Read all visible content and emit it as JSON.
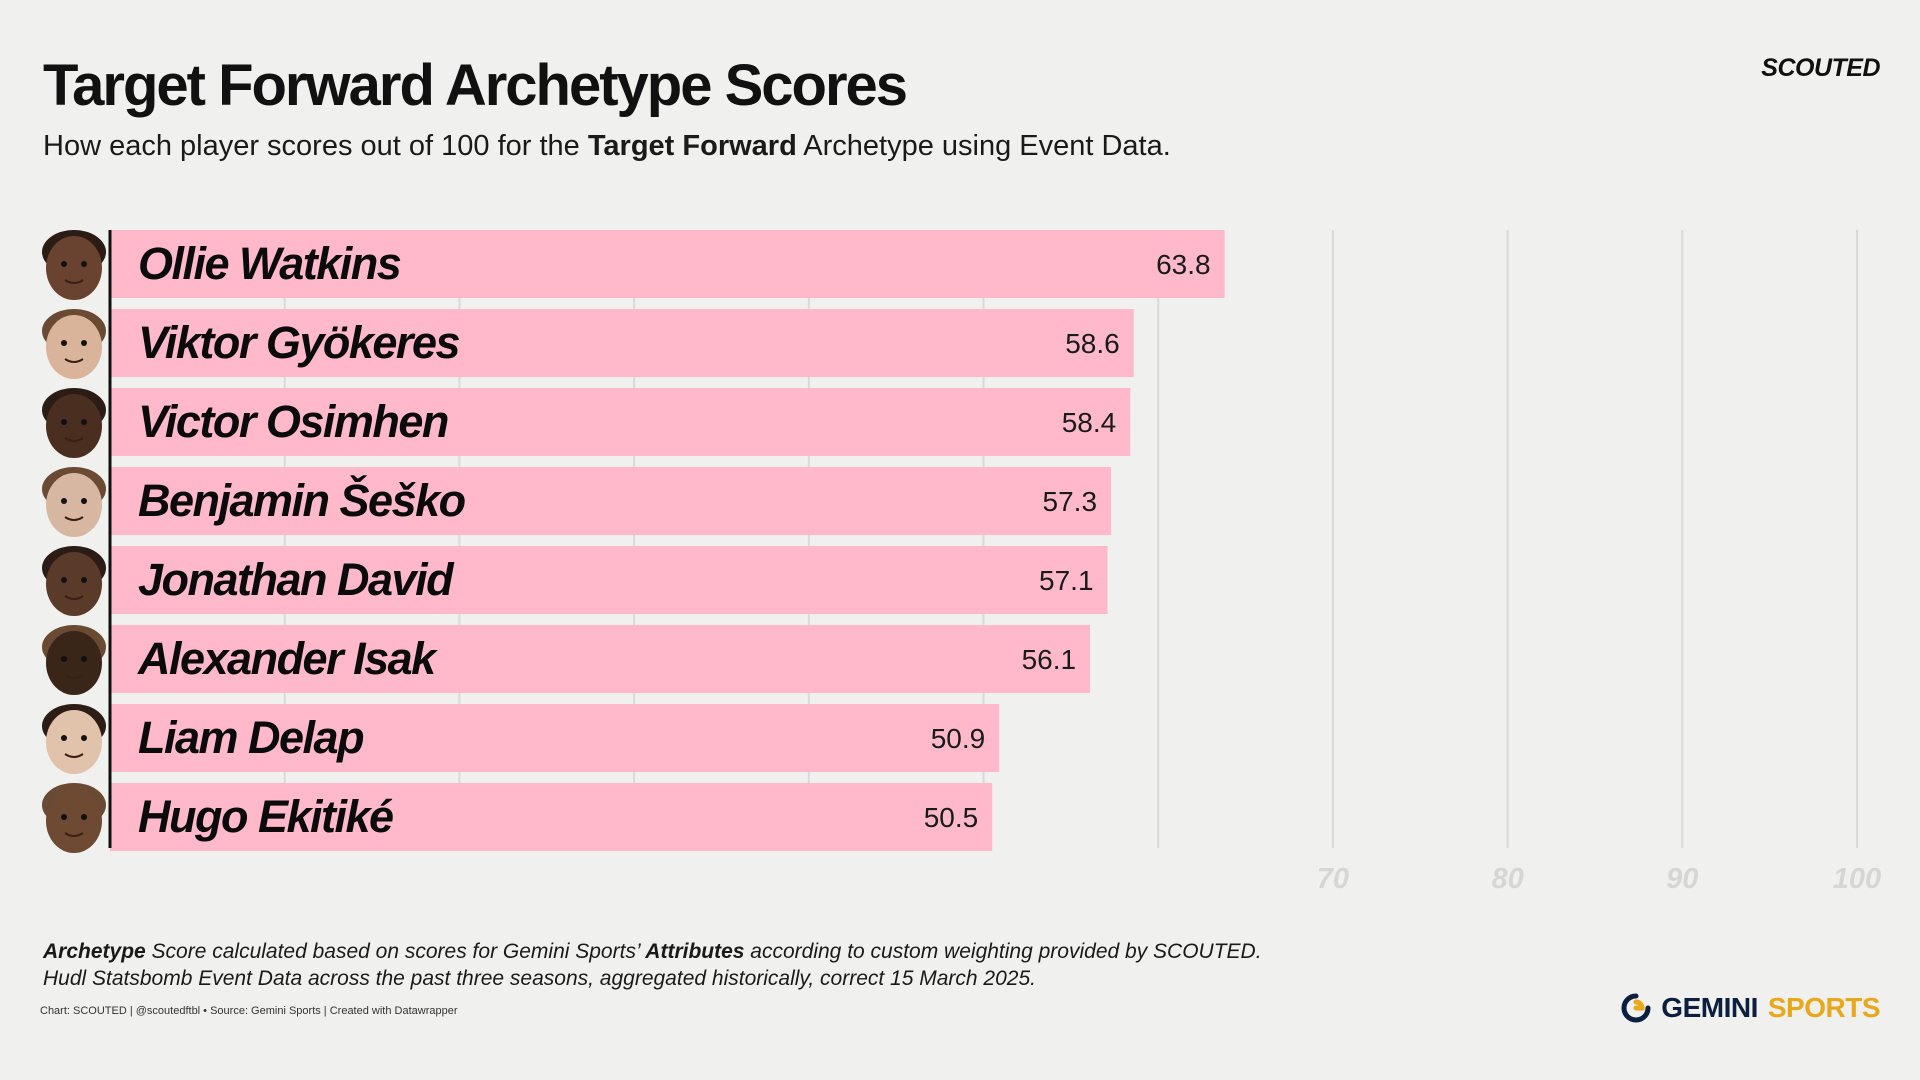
{
  "header": {
    "title": "Target Forward Archetype Scores",
    "subtitle_pre": "How each player scores out of 100 for the ",
    "subtitle_bold": "Target Forward",
    "subtitle_post": " Archetype using Event Data.",
    "brand": "SCOUTED"
  },
  "footer": {
    "note1_bold": "Archetype",
    "note1_mid": " Score calculated based on scores for Gemini Sports’ ",
    "note1_bold2": "Attributes",
    "note1_post": " according to custom weighting provided by SCOUTED.",
    "note2": "Hudl Statsbomb Event Data across the past three seasons, aggregated historically, correct 15 March 2025.",
    "credit": "Chart: SCOUTED | @scoutedftbl • Source: Gemini Sports | Created with Datawrapper",
    "logo_word1": "GEMINI",
    "logo_word2": "SPORTS"
  },
  "colors": {
    "bar": "#ffb9cb",
    "grid": "#d9d9d9",
    "axis": "#111111",
    "background": "#f0f0ef",
    "logo_navy": "#0c1f3f",
    "logo_gold": "#e7a81c"
  },
  "chart_data": {
    "type": "bar",
    "orientation": "horizontal",
    "categories": [
      "Ollie Watkins",
      "Viktor  Gyökeres",
      "Victor Osimhen",
      "Benjamin Šeško",
      "Jonathan David",
      "Alexander Isak",
      "Liam Delap",
      "Hugo Ekitiké"
    ],
    "values": [
      63.8,
      58.6,
      58.4,
      57.3,
      57.1,
      56.1,
      50.9,
      50.5
    ],
    "value_labels": [
      "63.8",
      "58.6",
      "58.4",
      "57.3",
      "57.1",
      "56.1",
      "50.9",
      "50.5"
    ],
    "xlim": [
      0,
      100
    ],
    "gridlines": [
      10,
      20,
      30,
      40,
      50,
      60,
      70,
      80,
      90,
      100
    ],
    "tick_labels": [
      "70",
      "80",
      "90",
      "100"
    ],
    "tick_values": [
      70,
      80,
      90,
      100
    ],
    "grid": true,
    "player_avatars": true
  }
}
